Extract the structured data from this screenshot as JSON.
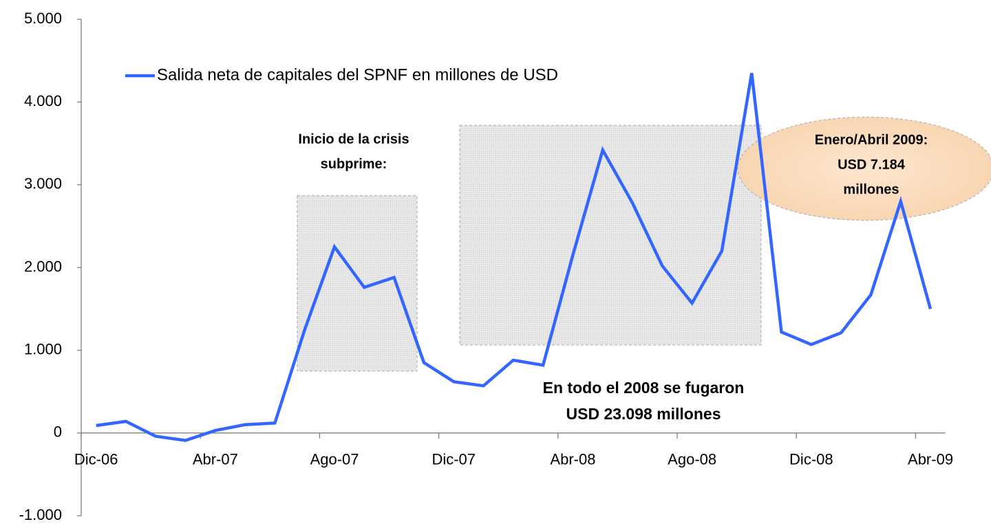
{
  "chart_data": {
    "type": "line",
    "categories": [
      "Dic-06",
      null,
      null,
      null,
      "Abr-07",
      null,
      null,
      null,
      "Ago-07",
      null,
      null,
      null,
      "Dic-07",
      null,
      null,
      null,
      "Abr-08",
      null,
      null,
      null,
      "Ago-08",
      null,
      null,
      null,
      "Dic-08",
      null,
      null,
      null,
      "Abr-09"
    ],
    "series": [
      {
        "name": "Salida neta de capitales del SPNF en millones de USD",
        "color": "#3366ff",
        "values": [
          90,
          140,
          -40,
          -90,
          30,
          100,
          120,
          1250,
          2250,
          1760,
          1880,
          850,
          620,
          570,
          880,
          820,
          2150,
          3420,
          2780,
          2020,
          1570,
          2200,
          4350,
          1220,
          1070,
          1210,
          1670,
          2800,
          1500
        ]
      }
    ],
    "ylim": [
      -1000,
      5000
    ],
    "yticks": [
      {
        "value": -1000,
        "label": "-1.000"
      },
      0,
      {
        "value": 1000,
        "label": "1.000"
      },
      {
        "value": 2000,
        "label": "2.000"
      },
      {
        "value": 3000,
        "label": "3.000"
      },
      {
        "value": 4000,
        "label": "4.000"
      },
      {
        "value": 5000,
        "label": "5.000"
      }
    ],
    "grid": false,
    "legend": "top-left",
    "annotations": [
      {
        "lines": [
          "Inicio de la crisis",
          "subprime:"
        ]
      },
      {
        "lines": [
          "En todo el 2008 se fugaron",
          "USD 23.098 millones"
        ]
      },
      {
        "lines": [
          "Enero/Abril 2009:",
          "USD  7.184",
          "millones"
        ]
      }
    ]
  }
}
